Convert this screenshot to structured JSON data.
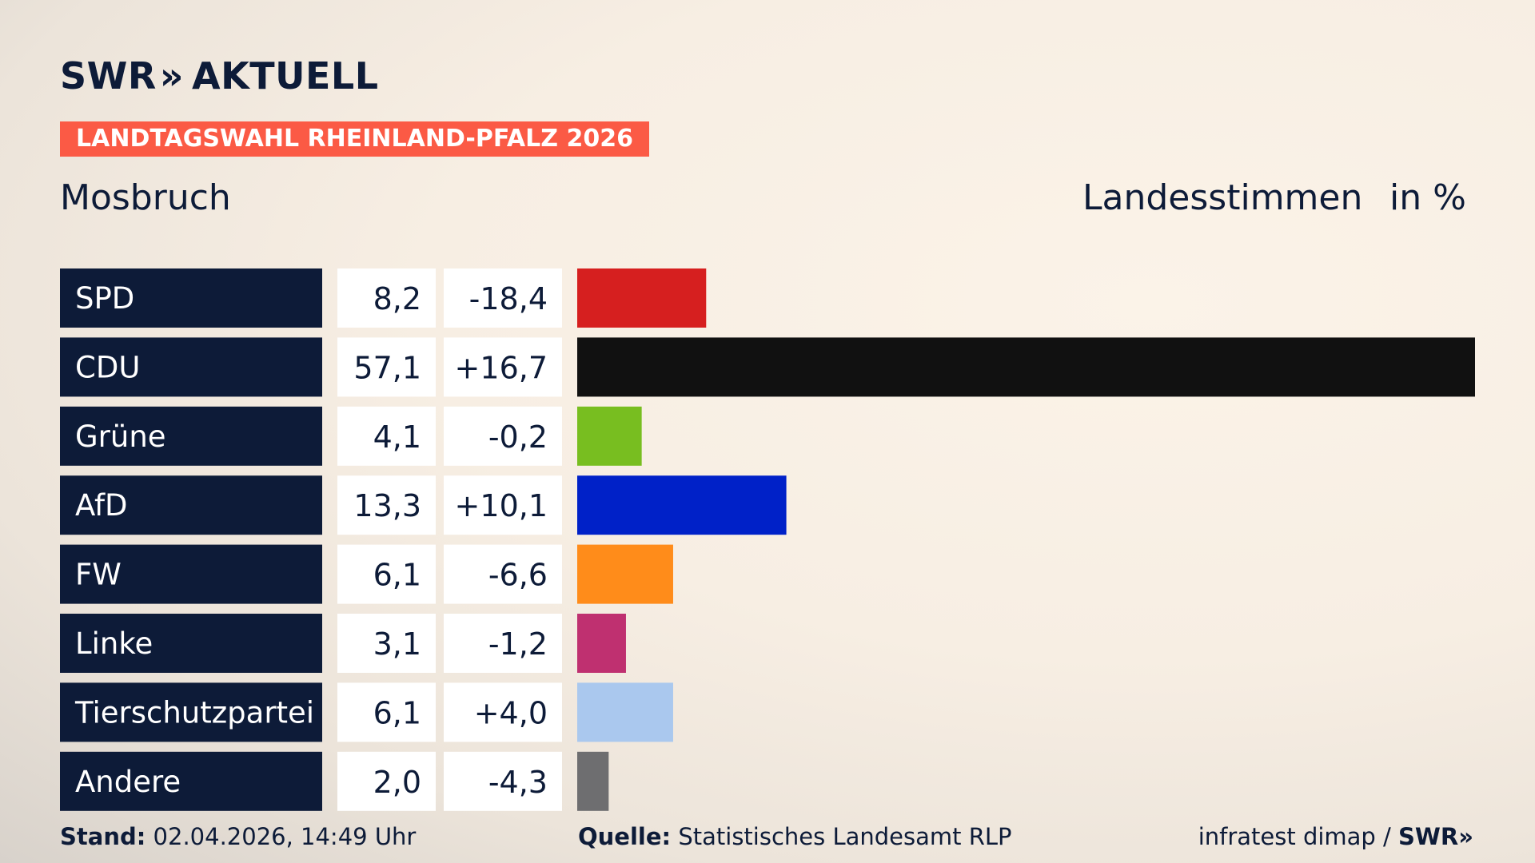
{
  "header": {
    "brand_left": "SWR",
    "brand_arrows": "»",
    "brand_right": "AKTUELL",
    "election_badge": "LANDTAGSWAHL RHEINLAND-PFALZ 2026",
    "region": "Mosbruch",
    "measure": "Landesstimmen",
    "unit": "in %"
  },
  "chart_data": {
    "type": "bar",
    "orientation": "horizontal",
    "categories": [
      "SPD",
      "CDU",
      "Grüne",
      "AfD",
      "FW",
      "Linke",
      "Tierschutzpartei",
      "Andere"
    ],
    "values": [
      8.2,
      57.1,
      4.1,
      13.3,
      6.1,
      3.1,
      6.1,
      2.0
    ],
    "value_labels": [
      "8,2",
      "57,1",
      "4,1",
      "13,3",
      "6,1",
      "3,1",
      "6,1",
      "2,0"
    ],
    "changes": [
      -18.4,
      16.7,
      -0.2,
      10.1,
      -6.6,
      -1.2,
      4.0,
      -4.3
    ],
    "change_labels": [
      "-18,4",
      "+16,7",
      "-0,2",
      "+10,1",
      "-6,6",
      "-1,2",
      "+4,0",
      "-4,3"
    ],
    "colors": [
      "#d61f1f",
      "#111111",
      "#78be20",
      "#0021c8",
      "#ff8c1a",
      "#bf3070",
      "#aac8ee",
      "#6e6e70"
    ],
    "xlim": [
      0,
      57.1
    ]
  },
  "footer": {
    "stand_label": "Stand:",
    "stand_value": "02.04.2026, 14:49 Uhr",
    "source_label": "Quelle:",
    "source_value": "Statistisches Landesamt RLP",
    "credit": "infratest dimap /",
    "credit_brand": "SWR»"
  }
}
